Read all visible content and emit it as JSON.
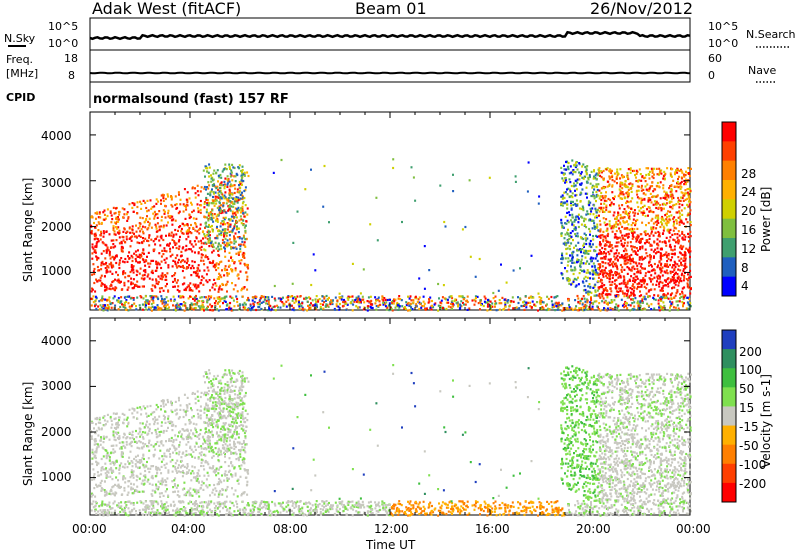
{
  "header": {
    "station": "Adak West (fitACF)",
    "beam": "Beam 01",
    "date": "26/Nov/2012"
  },
  "top_panels": {
    "nsky_label": "N.Sky",
    "nsky_ticks": [
      "10^5",
      "10^0"
    ],
    "nsearch_label": "N.Search",
    "nsearch_ticks": [
      "10^5",
      "10^0"
    ],
    "freq_label_1": "Freq.",
    "freq_label_2": "[MHz]",
    "freq_ticks": [
      "18",
      "8"
    ],
    "nave_label": "Nave",
    "nave_ticks": [
      "60",
      "0"
    ],
    "cpid_label": "CPID",
    "cpid_value": "normalsound (fast) 157 RF"
  },
  "power_panel": {
    "ylabel": "Slant Range [km]",
    "ytick_labels": [
      "4000",
      "3000",
      "2000",
      "1000"
    ],
    "colorbar_label": "Power [dB]",
    "colorbar_ticks": [
      "28",
      "24",
      "20",
      "16",
      "12",
      "8",
      "4"
    ],
    "colorbar_colors": [
      "#ff0000",
      "#ff4000",
      "#ff8000",
      "#ffb000",
      "#cfd000",
      "#7fbf3f",
      "#3f9f6f",
      "#1f5fbf",
      "#0000ff"
    ]
  },
  "velocity_panel": {
    "ylabel": "Slant Range [km]",
    "ytick_labels": [
      "4000",
      "3000",
      "2000",
      "1000"
    ],
    "colorbar_label": "Velocity [m s-1]",
    "colorbar_ticks": [
      "200",
      "100",
      "50",
      "15",
      "-15",
      "-50",
      "-100",
      "-200"
    ],
    "colorbar_colors": [
      "#1f3fbf",
      "#2f8f5f",
      "#3fbf3f",
      "#7fe04f",
      "#c8c8c0",
      "#ffb000",
      "#ff7f00",
      "#ff3f00",
      "#ff0000"
    ]
  },
  "x_axis": {
    "xlabel": "Time UT",
    "tick_labels": [
      "00:00",
      "04:00",
      "08:00",
      "12:00",
      "16:00",
      "20:00",
      "00:00"
    ]
  },
  "chart_data": {
    "type": "heatmap",
    "title": "Adak West (fitACF) Beam 01 26/Nov/2012",
    "xlabel": "Time UT",
    "ylabel": "Slant Range [km]",
    "x_ticks": [
      "00:00",
      "04:00",
      "08:00",
      "12:00",
      "16:00",
      "20:00",
      "00:00"
    ],
    "xlim_hours": [
      0,
      24
    ],
    "ylim": [
      180,
      4500
    ],
    "y_ticks": [
      1000,
      2000,
      3000,
      4000
    ],
    "panels": [
      {
        "name": "Power [dB]",
        "colorbar_range": [
          0,
          30
        ],
        "colorbar_ticks": [
          4,
          8,
          12,
          16,
          20,
          24,
          28
        ]
      },
      {
        "name": "Velocity [m s-1]",
        "colorbar_range": [
          -250,
          250
        ],
        "colorbar_ticks": [
          -200,
          -100,
          -50,
          -15,
          15,
          50,
          100,
          200
        ]
      }
    ],
    "scatter_regions": [
      {
        "t": [
          0.0,
          6.3
        ],
        "range_km": [
          600,
          2600
        ],
        "power": "high (20-30 dB) near 700-2000 km, lower toward edges",
        "velocity": "near zero (-15 to 15), some positive"
      },
      {
        "t": [
          4.5,
          6.2
        ],
        "range_km": [
          1500,
          3400
        ],
        "power": "low-mid (4-16 dB)",
        "velocity": "positive 15-50"
      },
      {
        "t": [
          18.8,
          24.0
        ],
        "range_km": [
          500,
          3500
        ],
        "power": "low near 19-20h, high (20-30 dB) 20-24h at 700-1800 km",
        "velocity": "positive 15-100 near 19-20h, near zero 20-24h"
      },
      {
        "t": [
          0.0,
          24.0
        ],
        "range_km": [
          180,
          500
        ],
        "power": "mixed low",
        "velocity": "mostly small negative near 16:00"
      }
    ]
  }
}
